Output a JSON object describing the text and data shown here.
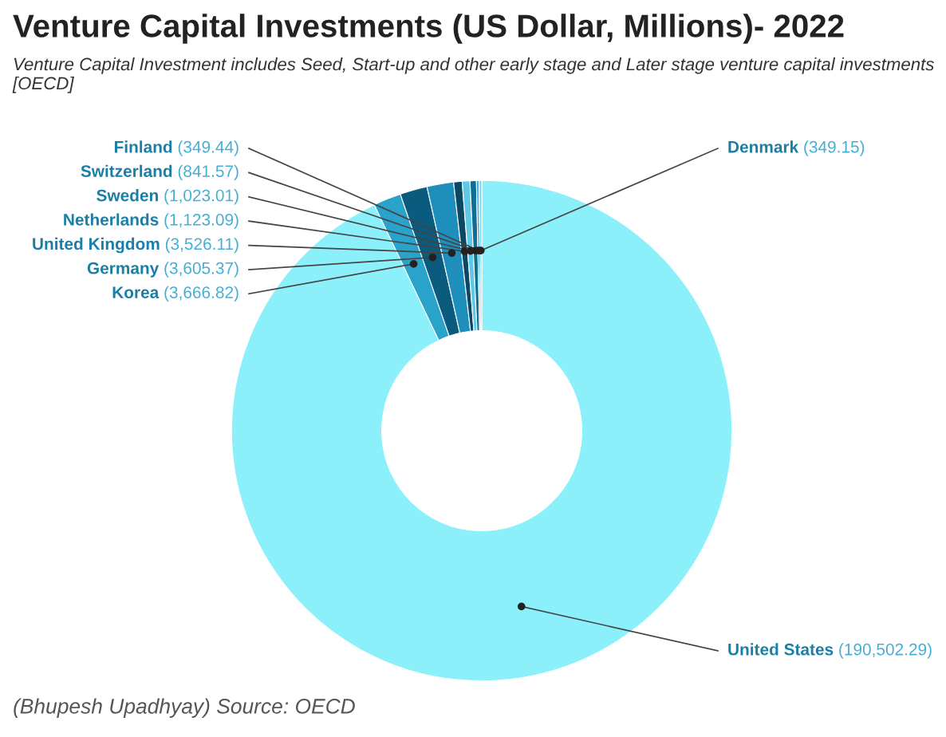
{
  "chart_data": {
    "type": "donut",
    "title": "Venture Capital Investments (US Dollar, Millions)- 2022",
    "subtitle": "Venture Capital Investment includes Seed, Start-up and other early stage and Later stage venture capital investments [OECD]",
    "categories": [
      "United States",
      "Korea",
      "Germany",
      "United Kingdom",
      "Netherlands",
      "Sweden",
      "Switzerland",
      "Finland",
      "Denmark"
    ],
    "values": [
      190502.29,
      3666.82,
      3605.37,
      3526.11,
      1123.09,
      1023.01,
      841.57,
      349.44,
      349.15
    ],
    "value_labels": [
      "(190,502.29)",
      "(3,666.82)",
      "(3,605.37)",
      "(3,526.11)",
      "(1,123.09)",
      "(1,023.01)",
      "(841.57)",
      "(349.44)",
      "(349.15)"
    ],
    "colors": [
      "#8cf0fb",
      "#2aa3cb",
      "#0b5b7e",
      "#1e8fbd",
      "#0a4866",
      "#5ec8e6",
      "#116e93",
      "#3bb0d8",
      "#7ad8ee"
    ],
    "annotations": [
      "(Bhupesh Upadhyay) Source: OECD"
    ],
    "legend": false
  }
}
